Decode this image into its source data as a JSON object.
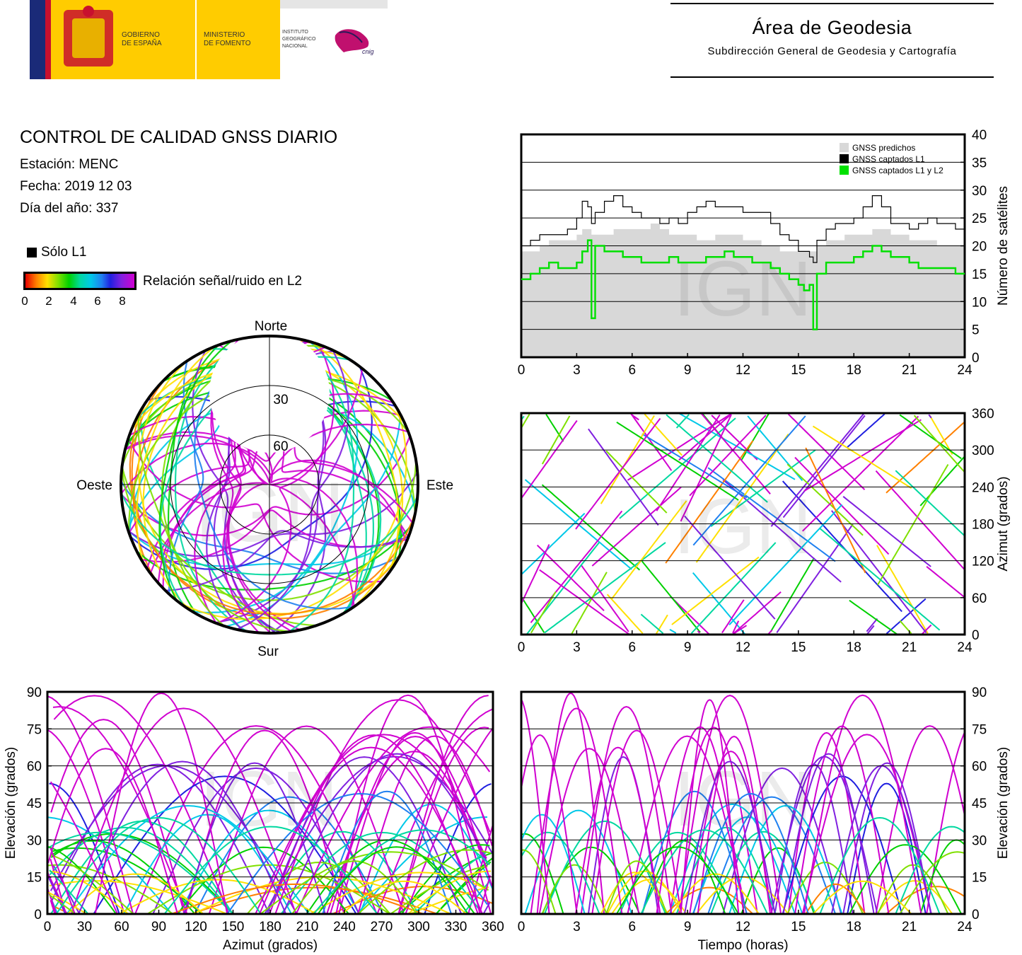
{
  "header": {
    "logos": {
      "gov_line1": "GOBIERNO",
      "gov_line2": "DE ESPAÑA",
      "min_line1": "MINISTERIO",
      "min_line2": "DE FOMENTO",
      "inst_line1": "INSTITUTO",
      "inst_line2": "GEOGRÁFICO",
      "inst_line3": "NACIONAL",
      "cnig": "cnig"
    },
    "area_title": "Área de Geodesia",
    "area_subtitle": "Subdirección General de Geodesia y Cartografía"
  },
  "report": {
    "title": "CONTROL DE CALIDAD GNSS DIARIO",
    "station": "Estación: MENC",
    "date": "Fecha: 2019 12 03",
    "doy": "Día del año: 337"
  },
  "legend": {
    "l1_only": "Sólo L1",
    "colorbar_label": "Relación señal/ruido en L2",
    "colorbar_ticks": [
      "0",
      "2",
      "4",
      "6",
      "8"
    ]
  },
  "watermark": "IGN",
  "colors": {
    "predicted": "#d8d8d8",
    "l1": "#000000",
    "l1l2": "#00e000",
    "snr_scale": [
      "#e50000",
      "#ff8000",
      "#ffe000",
      "#80e000",
      "#00d000",
      "#00d8a0",
      "#00c8e8",
      "#2080f0",
      "#2020e0",
      "#8020e0",
      "#d000d0"
    ]
  },
  "chart_data": [
    {
      "id": "satellite-count",
      "type": "area",
      "xlim": [
        0,
        24
      ],
      "ylim": [
        0,
        40
      ],
      "x_ticks": [
        "0",
        "3",
        "6",
        "9",
        "12",
        "15",
        "18",
        "21",
        "24"
      ],
      "y_ticks": [
        "0",
        "5",
        "10",
        "15",
        "20",
        "25",
        "30",
        "35",
        "40"
      ],
      "ylabel": "Número de satélites",
      "legend": {
        "placement": "top-right",
        "entries": [
          "GNSS predichos",
          "GNSS captados L1",
          "GNSS captados L1 y L2"
        ]
      },
      "x": [
        0,
        0.5,
        1,
        1.5,
        2,
        2.5,
        3,
        3.3,
        3.6,
        3.8,
        4,
        4.5,
        5,
        5.5,
        6,
        6.5,
        7,
        7.5,
        8,
        8.5,
        9,
        9.5,
        10,
        10.5,
        11,
        11.5,
        12,
        12.5,
        13,
        13.5,
        14,
        14.5,
        15,
        15.3,
        15.6,
        15.8,
        16,
        16.5,
        17,
        17.5,
        18,
        18.5,
        19,
        19.5,
        20,
        20.5,
        21,
        21.5,
        22,
        22.5,
        23,
        23.5,
        24
      ],
      "series": [
        {
          "name": "GNSS predichos",
          "values": [
            19,
            19,
            20,
            21,
            21,
            21,
            22,
            23,
            23,
            22,
            22,
            22,
            23,
            23,
            23,
            23,
            24,
            23,
            22,
            22,
            22,
            21,
            21,
            22,
            22,
            22,
            21,
            21,
            20,
            20,
            19,
            19,
            19,
            19,
            19,
            19,
            20,
            21,
            21,
            22,
            22,
            22,
            23,
            23,
            22,
            22,
            21,
            21,
            21,
            20,
            20,
            20,
            20
          ]
        },
        {
          "name": "GNSS captados L1",
          "values": [
            20,
            21,
            22,
            22,
            22,
            23,
            25,
            28,
            27,
            24,
            26,
            28,
            29,
            27,
            26,
            25,
            25,
            24,
            25,
            24,
            26,
            27,
            28,
            27,
            27,
            27,
            26,
            26,
            26,
            24,
            22,
            21,
            19,
            19,
            18,
            17,
            21,
            23,
            24,
            24,
            25,
            27,
            29,
            27,
            24,
            24,
            23,
            24,
            25,
            24,
            24,
            23,
            22
          ]
        },
        {
          "name": "GNSS captados L1 y L2",
          "values": [
            14,
            15,
            16,
            17,
            16,
            16,
            17,
            19,
            21,
            7,
            20,
            19,
            19,
            18,
            18,
            17,
            17,
            17,
            18,
            17,
            17,
            17,
            18,
            18,
            19,
            18,
            18,
            17,
            17,
            16,
            15,
            14,
            13,
            12,
            13,
            5,
            15,
            17,
            17,
            17,
            18,
            19,
            20,
            19,
            18,
            18,
            17,
            16,
            16,
            16,
            16,
            15,
            15
          ]
        }
      ]
    },
    {
      "id": "skyplot",
      "type": "scatter",
      "axis_labels": {
        "north": "Norte",
        "south": "Sur",
        "east": "Este",
        "west": "Oeste"
      },
      "ring_labels": [
        "30",
        "60"
      ]
    },
    {
      "id": "azimuth-time",
      "type": "scatter",
      "xlim": [
        0,
        24
      ],
      "ylim": [
        0,
        360
      ],
      "x_ticks": [
        "0",
        "3",
        "6",
        "9",
        "12",
        "15",
        "18",
        "21",
        "24"
      ],
      "y_ticks": [
        "0",
        "60",
        "120",
        "180",
        "240",
        "300",
        "360"
      ],
      "ylabel": "Azimut (grados)"
    },
    {
      "id": "elevation-azimuth",
      "type": "scatter",
      "xlim": [
        0,
        360
      ],
      "ylim": [
        0,
        90
      ],
      "x_ticks": [
        "0",
        "30",
        "60",
        "90",
        "120",
        "150",
        "180",
        "210",
        "240",
        "270",
        "300",
        "330",
        "360"
      ],
      "y_ticks": [
        "0",
        "15",
        "30",
        "45",
        "60",
        "75",
        "90"
      ],
      "xlabel": "Azimut (grados)",
      "ylabel": "Elevación (grados)"
    },
    {
      "id": "elevation-time",
      "type": "scatter",
      "xlim": [
        0,
        24
      ],
      "ylim": [
        0,
        90
      ],
      "x_ticks": [
        "0",
        "3",
        "6",
        "9",
        "12",
        "15",
        "18",
        "21",
        "24"
      ],
      "y_ticks": [
        "0",
        "15",
        "30",
        "45",
        "60",
        "75",
        "90"
      ],
      "xlabel": "Tiempo (horas)",
      "ylabel": "Elevación (grados)"
    }
  ]
}
